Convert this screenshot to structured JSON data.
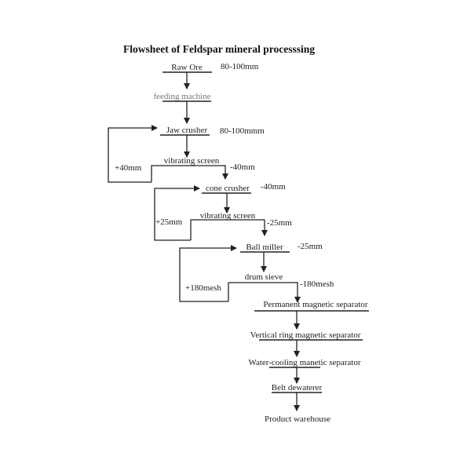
{
  "title": "Flowsheet of Feldspar mineral processsing",
  "nodes": {
    "raw_ore": "Raw Ore",
    "feeding_machine": "feeding machine",
    "jaw_crusher": "Jaw crusher",
    "vibrating_screen_1": "vibrating screen",
    "cone_crusher": "cone crusher",
    "vibrating_screen_2": "vibrating screen",
    "ball_miller": "Ball miller",
    "drum_sieve": "drum sieve",
    "permanent_magnetic_separator": "Permanent magnetic separator",
    "vertical_ring_magnetic_separator": "Vertical ring magnetic separator",
    "water_cooling_magnetic_separator": "Water-cooling manetic separator",
    "belt_dewaterer": "Belt dewaterer",
    "product_warehouse": "Product warehouse"
  },
  "labels": {
    "raw_ore_size": "80-100mm",
    "jaw_crusher_size": "80-100mmm",
    "screen1_oversize": "+40mm",
    "screen1_undersize": "-40mm",
    "cone_crusher_size": "-40mm",
    "screen2_oversize": "+25mm",
    "screen2_undersize": "-25mm",
    "ball_miller_size": "-25mm",
    "sieve_oversize": "+180mesh",
    "sieve_undersize": "-180mesh"
  }
}
